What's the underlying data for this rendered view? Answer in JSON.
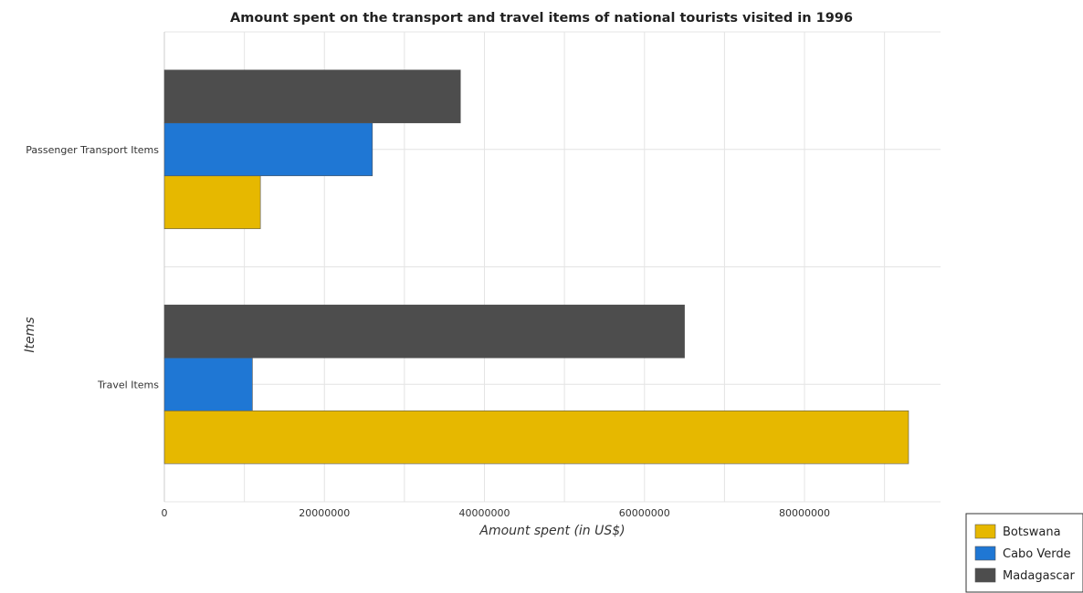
{
  "chart_data": {
    "type": "bar",
    "orientation": "horizontal",
    "title": "Amount spent on the transport and travel items of national tourists visited in 1996",
    "xlabel": "Amount spent (in US$)",
    "ylabel": "Items",
    "categories": [
      "Passenger Transport Items",
      "Travel Items"
    ],
    "series": [
      {
        "name": "Botswana",
        "color": "#e6b800",
        "values": [
          12000000,
          93000000
        ]
      },
      {
        "name": "Cabo Verde",
        "color": "#1f77d4",
        "values": [
          26000000,
          11000000
        ]
      },
      {
        "name": "Madagascar",
        "color": "#4d4d4d",
        "values": [
          37000000,
          65000000
        ]
      }
    ],
    "xlim": [
      0,
      97000000
    ],
    "xticks": [
      0,
      20000000,
      40000000,
      60000000,
      80000000
    ],
    "xtick_labels": [
      "0",
      "20000000",
      "40000000",
      "60000000",
      "80000000"
    ],
    "grid": true,
    "legend_position": "bottom-right"
  }
}
